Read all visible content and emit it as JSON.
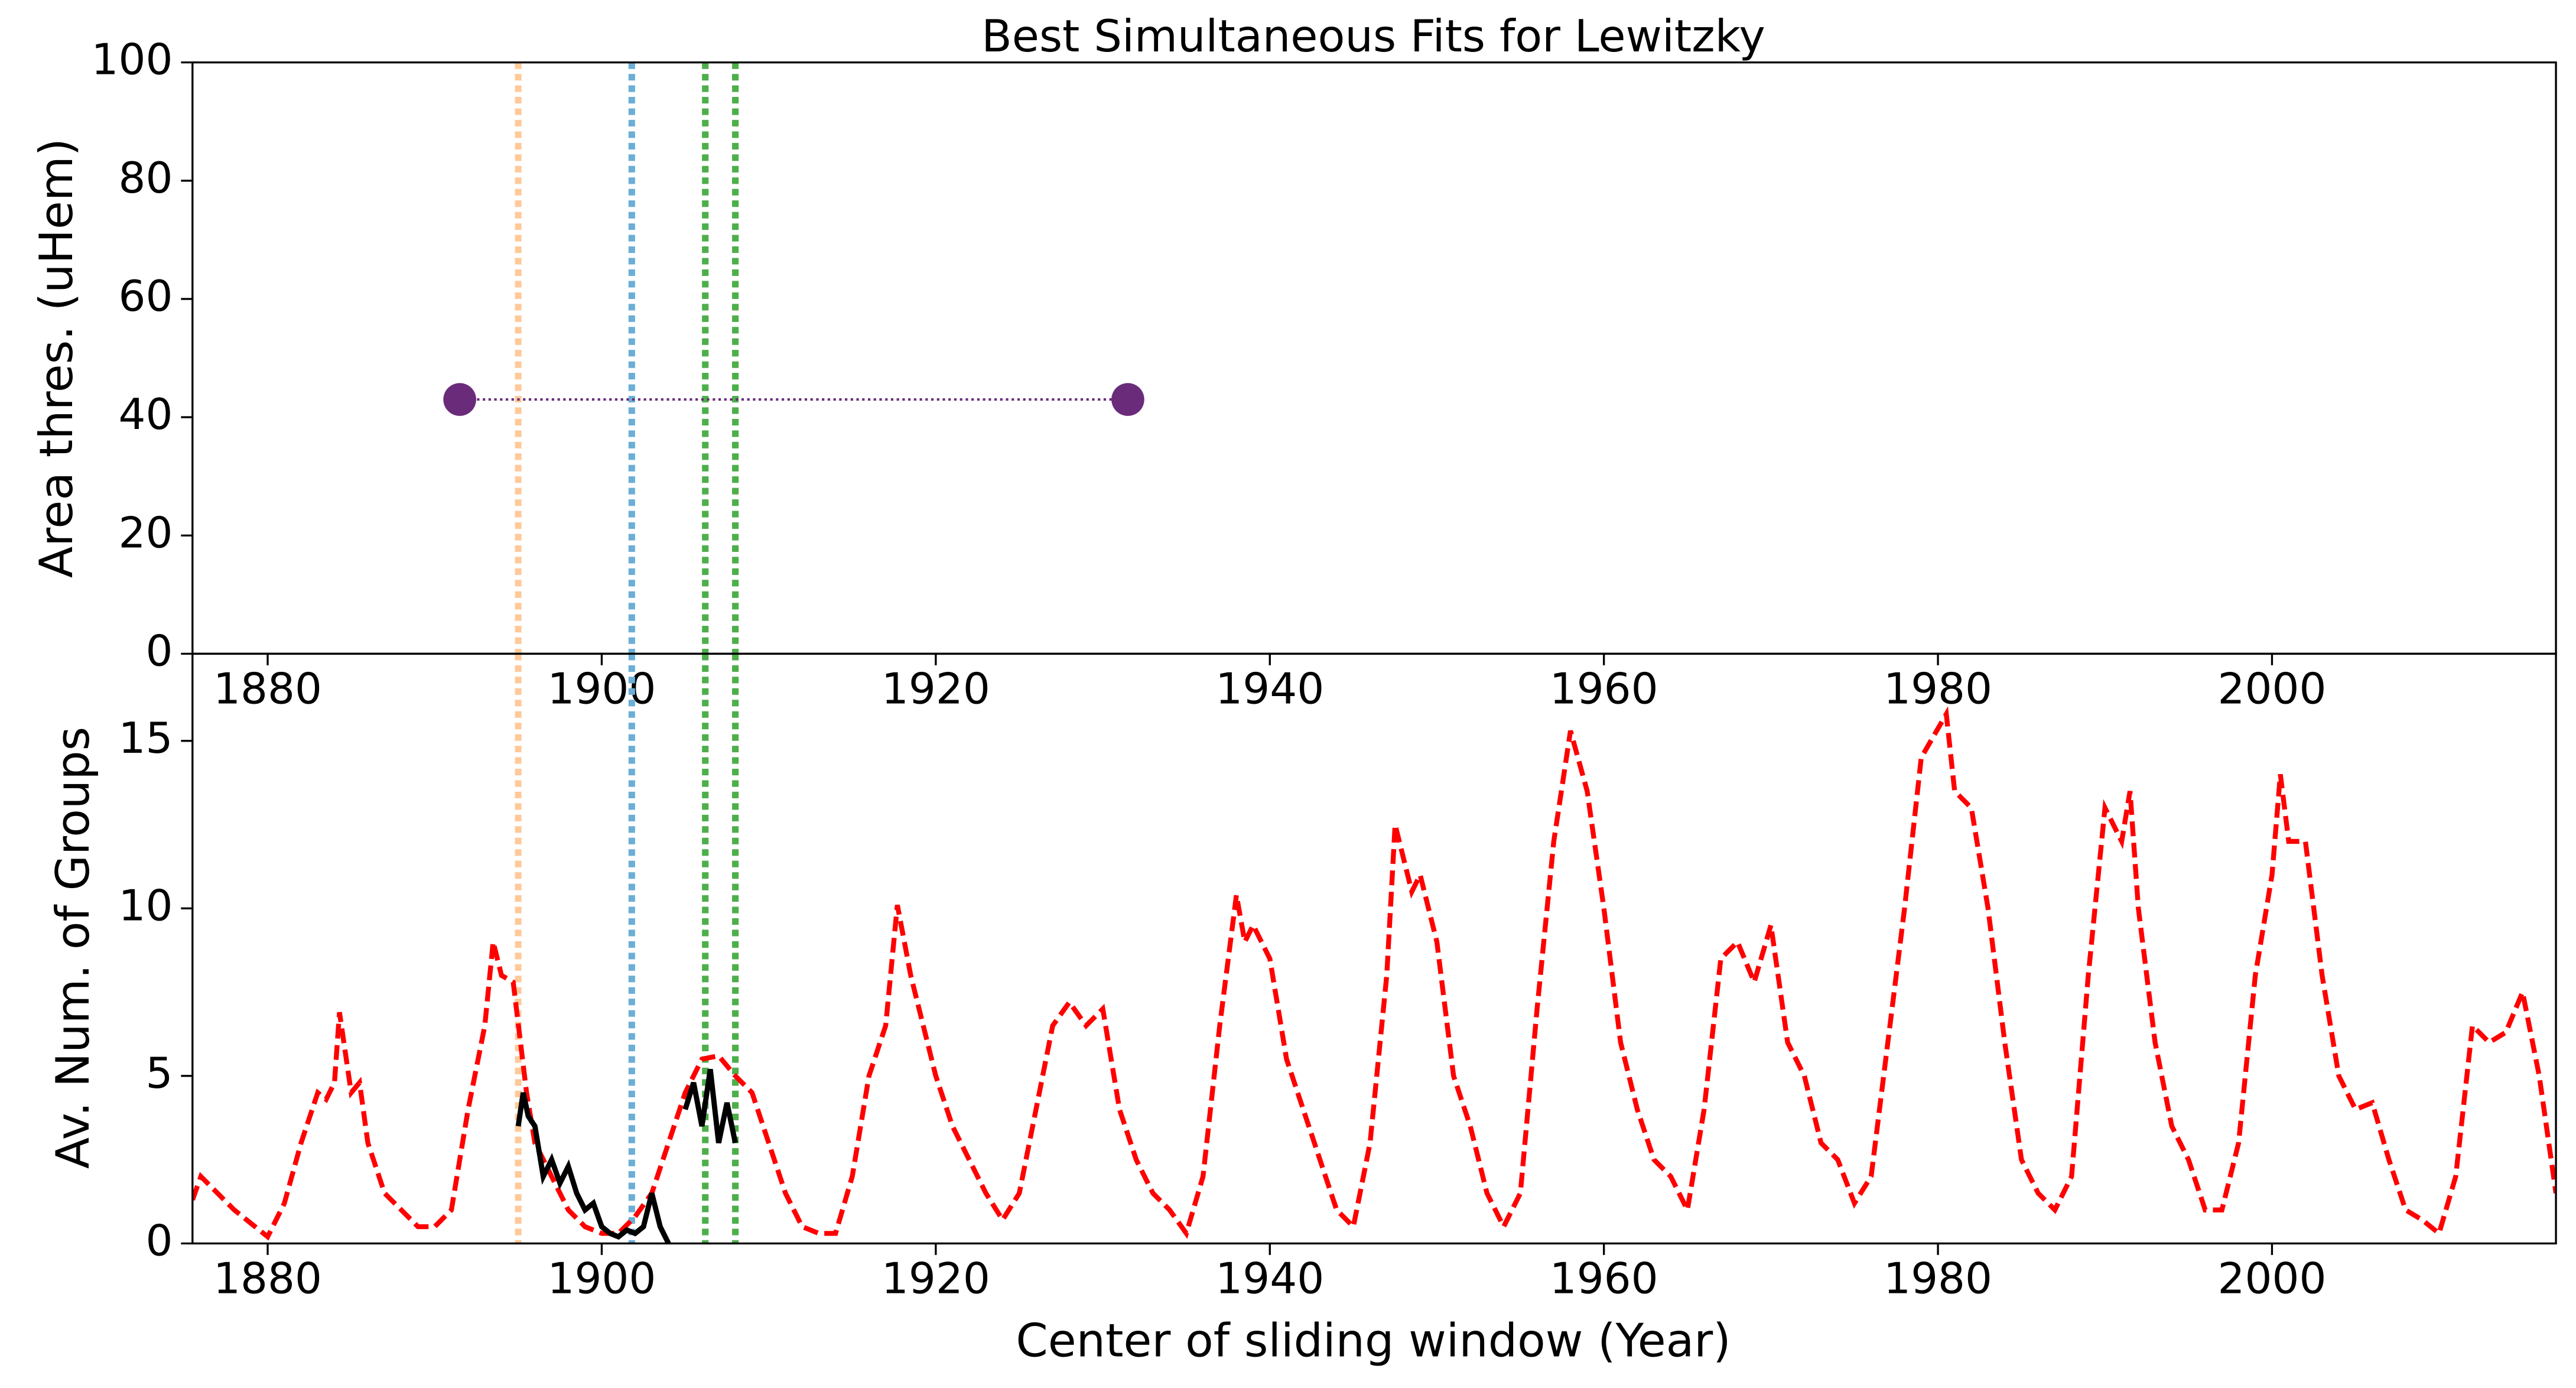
{
  "chart_data": [
    {
      "type": "scatter",
      "title": "Best Simultaneous Fits for Lewitzky",
      "y_label": "Area thres. (uHem)",
      "xlim": [
        1875.5,
        2017.0
      ],
      "xticks": [
        1880,
        1900,
        1920,
        1940,
        1960,
        1980,
        2000
      ],
      "ylim": [
        0,
        100
      ],
      "yticks": [
        0,
        20,
        40,
        60,
        80,
        100
      ],
      "series": [
        {
          "color": "#6a2c7a",
          "x": [
            1891.5,
            1931.5
          ],
          "values": [
            43,
            43
          ]
        }
      ],
      "vlines": [
        {
          "value": 1895,
          "color": "#ffc999"
        },
        {
          "value": 1901.8,
          "color": "#6baed6"
        },
        {
          "value": 1906.2,
          "color": "#4daf4a"
        },
        {
          "value": 1908,
          "color": "#4daf4a"
        }
      ]
    },
    {
      "type": "line",
      "x_label": "Center of sliding window (Year)",
      "y_label": "Av. Num. of Groups",
      "xlim": [
        1875.5,
        2017.0
      ],
      "xticks": [
        1880,
        1900,
        1920,
        1940,
        1960,
        1980,
        2000
      ],
      "ylim": [
        0,
        17.6
      ],
      "yticks": [
        0,
        5,
        10,
        15
      ],
      "series": [
        {
          "color": "#ff0000",
          "dashed": true,
          "x": [
            1875.5,
            1876,
            1877,
            1878,
            1879,
            1880,
            1881,
            1882,
            1883,
            1883.5,
            1884,
            1884.3,
            1885,
            1885.5,
            1886,
            1887,
            1888,
            1889,
            1890,
            1891,
            1892,
            1893,
            1893.5,
            1894,
            1894.7,
            1895.5,
            1896,
            1897,
            1898,
            1899,
            1900,
            1901,
            1902,
            1903,
            1904,
            1905,
            1906,
            1907,
            1908,
            1909,
            1910,
            1911,
            1912,
            1913,
            1914,
            1915,
            1916,
            1917,
            1917.7,
            1918.5,
            1919,
            1920,
            1921,
            1922,
            1923,
            1924,
            1925,
            1926,
            1927,
            1928,
            1929,
            1930,
            1931,
            1932,
            1933,
            1934,
            1935,
            1936,
            1937,
            1938,
            1938.5,
            1939,
            1940,
            1941,
            1942,
            1943,
            1944,
            1945,
            1946,
            1947,
            1947.5,
            1948.5,
            1949,
            1950,
            1951,
            1952,
            1953,
            1954,
            1955,
            1956,
            1957,
            1958,
            1959,
            1960,
            1961,
            1962,
            1963,
            1964,
            1965,
            1966,
            1967,
            1968,
            1969,
            1970,
            1971,
            1972,
            1973,
            1974,
            1975,
            1976,
            1977,
            1978,
            1979,
            1980.5,
            1981,
            1982,
            1983,
            1984,
            1985,
            1986,
            1987,
            1988,
            1989,
            1990,
            1991,
            1991.5,
            1992,
            1993,
            1994,
            1995,
            1996,
            1997,
            1998,
            1999,
            2000,
            2000.5,
            2001,
            2002,
            2003,
            2004,
            2005,
            2006,
            2007,
            2008,
            2009,
            2010,
            2011,
            2012,
            2013,
            2014,
            2015,
            2016,
            2017
          ],
          "values": [
            1.3,
            2.0,
            1.5,
            1.0,
            0.6,
            0.2,
            1.2,
            3.0,
            4.5,
            4.3,
            4.8,
            6.9,
            4.5,
            4.8,
            3.0,
            1.5,
            1.0,
            0.5,
            0.5,
            1.0,
            4.0,
            6.5,
            9.0,
            8.0,
            7.8,
            4.5,
            3.0,
            2.0,
            1.0,
            0.5,
            0.3,
            0.3,
            0.8,
            1.5,
            3.0,
            4.5,
            5.5,
            5.6,
            5.0,
            4.5,
            3.0,
            1.5,
            0.5,
            0.3,
            0.3,
            2.0,
            5.0,
            6.5,
            10.1,
            8.0,
            7.0,
            5.0,
            3.5,
            2.5,
            1.5,
            0.7,
            1.5,
            4.0,
            6.5,
            7.2,
            6.5,
            7.0,
            4.0,
            2.5,
            1.5,
            1.0,
            0.3,
            2.0,
            6.5,
            10.4,
            9.0,
            9.5,
            8.5,
            5.5,
            4.0,
            2.5,
            1.0,
            0.5,
            3.0,
            8.0,
            12.5,
            10.5,
            11.0,
            9.0,
            5.0,
            3.5,
            1.5,
            0.5,
            1.5,
            7.0,
            12.0,
            15.3,
            13.5,
            10.0,
            6.0,
            4.0,
            2.5,
            2.0,
            1.0,
            4.0,
            8.5,
            9.0,
            7.8,
            9.5,
            6.0,
            5.0,
            3.0,
            2.5,
            1.2,
            2.0,
            6.0,
            10.0,
            14.5,
            15.8,
            13.5,
            13.0,
            10.0,
            6.0,
            2.5,
            1.5,
            1.0,
            2.0,
            8.0,
            13.0,
            12.0,
            13.5,
            10.0,
            6.0,
            3.5,
            2.5,
            1.0,
            1.0,
            3.0,
            8.0,
            11.0,
            14.0,
            12.0,
            12.0,
            8.0,
            5.0,
            4.0,
            4.2,
            2.5,
            1.0,
            0.7,
            0.3,
            2.0,
            6.5,
            6.0,
            6.3,
            7.5,
            5.0,
            1.5
          ]
        },
        {
          "color": "#000000",
          "dashed": false,
          "x": [
            1895,
            1895.3,
            1895.6,
            1896,
            1896.5,
            1897,
            1897.5,
            1898,
            1898.5,
            1899,
            1899.5,
            1900,
            1900.5,
            1901,
            1901.5,
            1902,
            1902.5,
            1903,
            1903.5,
            1904,
            1904.5,
            1905,
            1905.5,
            1906,
            1906.5,
            1907,
            1907.5,
            1908
          ],
          "values": [
            3.5,
            4.5,
            3.8,
            3.5,
            2.0,
            2.5,
            1.8,
            2.3,
            1.5,
            1.0,
            1.2,
            0.5,
            0.3,
            0.2,
            0.4,
            0.3,
            0.5,
            1.5,
            0.5,
            0.0,
            null,
            4.0,
            4.8,
            3.5,
            5.2,
            3.0,
            4.2,
            3.0
          ]
        }
      ]
    }
  ]
}
